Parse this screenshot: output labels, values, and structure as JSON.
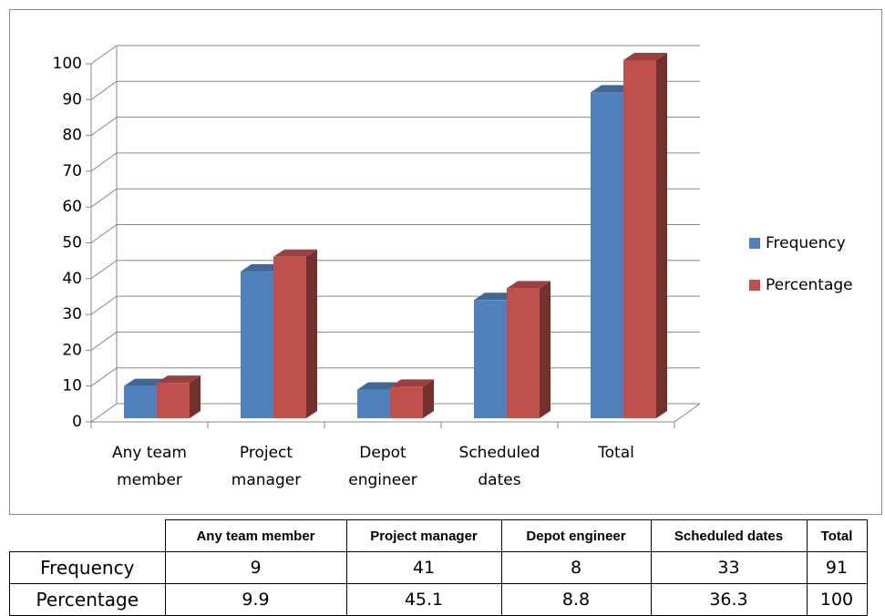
{
  "chart_data": {
    "type": "bar",
    "categories": [
      "Any team member",
      "Project manager",
      "Depot engineer",
      "Scheduled dates",
      "Total"
    ],
    "series": [
      {
        "name": "Frequency",
        "color": "#4f81bd",
        "values": [
          9,
          41,
          8,
          33,
          91
        ]
      },
      {
        "name": "Percentage",
        "color": "#c0504d",
        "values": [
          9.9,
          45.1,
          8.8,
          36.3,
          100
        ]
      }
    ],
    "ylim": [
      0,
      100
    ],
    "yticks": [
      0,
      10,
      20,
      30,
      40,
      50,
      60,
      70,
      80,
      90,
      100
    ],
    "grid": true,
    "legend": "right"
  }
}
